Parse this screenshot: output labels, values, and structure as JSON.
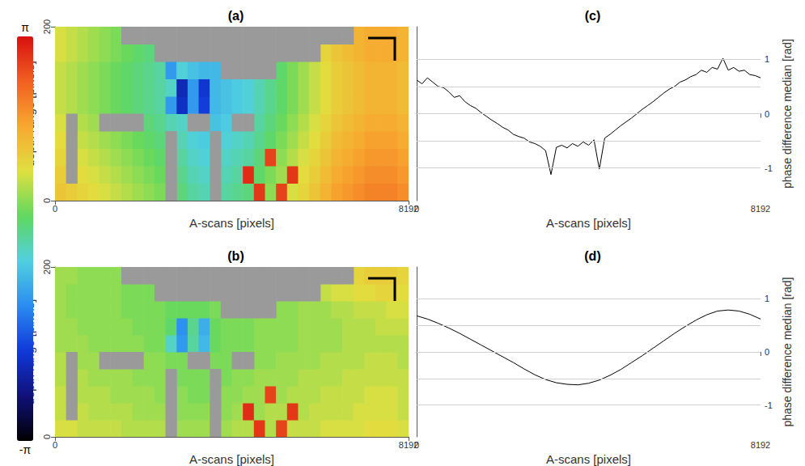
{
  "chart_data": [
    {
      "type": "heatmap",
      "title": "(a)",
      "x_label": "A-scans [pixels]",
      "y_label": "depth range [pixels]",
      "xlim": [
        0,
        8192
      ],
      "xticks": [
        0,
        8192
      ],
      "ylim": [
        0,
        200
      ],
      "yticks": [
        0,
        200
      ],
      "colorbar": {
        "range": [
          -3.14159,
          3.14159
        ],
        "ticks": [
          {
            "value": -3.14159,
            "label": "-π"
          },
          {
            "value": 3.14159,
            "label": "π"
          }
        ]
      },
      "x_bins": [
        0,
        256,
        512,
        768,
        1024,
        1280,
        1536,
        1792,
        2048,
        2304,
        2560,
        2816,
        3072,
        3328,
        3584,
        3840,
        4096,
        4352,
        4608,
        4864,
        5120,
        5376,
        5632,
        5888,
        6144,
        6400,
        6656,
        6912,
        7168,
        7424,
        7680,
        7936,
        8192
      ],
      "y_bins": [
        0,
        20,
        40,
        60,
        80,
        100,
        120,
        140,
        160,
        180,
        200
      ],
      "cells": [
        [
          1.4,
          1.3,
          1.2,
          1.1,
          1.0,
          0.9,
          0.8,
          0.7,
          0.6,
          0.5,
          null,
          0.2,
          0.0,
          -0.1,
          null,
          0.0,
          0.1,
          0.2,
          2.8,
          0.6,
          2.7,
          1.0,
          1.2,
          1.4,
          1.6,
          1.8,
          1.9,
          2.0,
          2.1,
          2.1,
          2.1,
          2.0
        ],
        [
          1.3,
          null,
          1.1,
          1.0,
          0.9,
          0.8,
          0.7,
          0.6,
          0.5,
          0.4,
          null,
          0.1,
          -0.1,
          -0.2,
          null,
          -0.1,
          0.0,
          2.9,
          0.3,
          0.5,
          0.7,
          2.8,
          1.1,
          1.3,
          1.5,
          1.7,
          1.8,
          1.9,
          2.0,
          2.0,
          2.0,
          1.9
        ],
        [
          1.2,
          null,
          1.0,
          0.9,
          0.8,
          0.7,
          0.6,
          0.5,
          0.4,
          0.3,
          null,
          0.0,
          -0.2,
          -0.3,
          null,
          -0.2,
          -0.1,
          0.0,
          0.2,
          2.7,
          0.6,
          0.8,
          1.0,
          1.2,
          1.4,
          1.6,
          1.7,
          1.8,
          1.9,
          1.9,
          1.9,
          1.8
        ],
        [
          1.1,
          null,
          0.9,
          0.8,
          0.7,
          0.6,
          0.5,
          0.4,
          0.3,
          0.2,
          null,
          -0.1,
          -0.3,
          -0.4,
          null,
          -0.3,
          -0.2,
          -0.1,
          0.1,
          0.3,
          0.5,
          0.7,
          0.9,
          1.1,
          1.3,
          1.5,
          1.6,
          1.7,
          1.8,
          1.8,
          1.8,
          1.7
        ],
        [
          1.0,
          null,
          0.8,
          0.7,
          null,
          null,
          null,
          null,
          0.2,
          0.1,
          -0.1,
          -0.2,
          null,
          null,
          -0.5,
          -0.4,
          null,
          null,
          0.0,
          0.2,
          0.4,
          0.6,
          0.8,
          1.0,
          1.2,
          1.4,
          1.5,
          1.6,
          1.7,
          1.7,
          1.7,
          1.6
        ],
        [
          0.9,
          0.8,
          0.7,
          0.6,
          0.5,
          0.4,
          0.3,
          0.2,
          0.1,
          0.0,
          -0.9,
          -1.9,
          -0.9,
          -1.7,
          -0.6,
          -0.5,
          -0.4,
          -0.3,
          -0.1,
          0.1,
          0.3,
          0.5,
          0.7,
          0.9,
          1.1,
          1.3,
          1.4,
          1.5,
          1.6,
          1.6,
          1.6,
          1.5
        ],
        [
          0.9,
          0.8,
          0.7,
          0.6,
          0.5,
          0.4,
          0.3,
          0.2,
          0.1,
          0.0,
          -0.2,
          -2.0,
          -0.9,
          -1.8,
          -0.6,
          -0.5,
          -0.4,
          -0.3,
          -0.1,
          0.1,
          0.3,
          0.5,
          0.7,
          0.9,
          1.1,
          1.3,
          1.4,
          1.5,
          1.6,
          1.6,
          1.6,
          1.5
        ],
        [
          0.9,
          0.8,
          0.7,
          0.6,
          0.5,
          0.4,
          0.3,
          0.2,
          0.1,
          0.0,
          -0.9,
          -0.3,
          -0.5,
          -0.6,
          -0.6,
          null,
          null,
          null,
          null,
          null,
          0.3,
          0.5,
          0.7,
          0.9,
          1.1,
          1.3,
          1.4,
          1.5,
          1.6,
          1.6,
          1.6,
          1.5
        ],
        [
          1.0,
          0.9,
          0.8,
          0.7,
          0.6,
          0.5,
          0.4,
          0.3,
          0.2,
          null,
          null,
          null,
          null,
          null,
          null,
          null,
          null,
          null,
          null,
          null,
          null,
          null,
          null,
          null,
          1.2,
          1.4,
          1.5,
          1.6,
          1.7,
          1.7,
          1.7,
          1.6
        ],
        [
          1.0,
          0.9,
          0.8,
          0.7,
          0.6,
          0.5,
          null,
          null,
          null,
          null,
          null,
          null,
          null,
          null,
          null,
          null,
          null,
          null,
          null,
          null,
          null,
          null,
          null,
          null,
          null,
          null,
          null,
          1.6,
          1.7,
          1.7,
          1.7,
          1.6
        ]
      ]
    },
    {
      "type": "heatmap",
      "title": "(b)",
      "x_label": "A-scans [pixels]",
      "y_label": "depth range [pixels]",
      "xlim": [
        0,
        8192
      ],
      "xticks": [
        0,
        8192
      ],
      "ylim": [
        0,
        200
      ],
      "yticks": [
        0,
        200
      ],
      "x_bins": [
        0,
        256,
        512,
        768,
        1024,
        1280,
        1536,
        1792,
        2048,
        2304,
        2560,
        2816,
        3072,
        3328,
        3584,
        3840,
        4096,
        4352,
        4608,
        4864,
        5120,
        5376,
        5632,
        5888,
        6144,
        6400,
        6656,
        6912,
        7168,
        7424,
        7680,
        7936,
        8192
      ],
      "y_bins": [
        0,
        20,
        40,
        60,
        80,
        100,
        120,
        140,
        160,
        180,
        200
      ],
      "cells": [
        [
          1.0,
          1.0,
          0.9,
          0.9,
          0.9,
          0.9,
          0.8,
          0.8,
          0.8,
          0.8,
          null,
          0.7,
          0.7,
          0.7,
          null,
          0.7,
          0.8,
          0.8,
          2.8,
          0.8,
          2.7,
          0.9,
          0.9,
          0.9,
          1.0,
          1.0,
          1.0,
          1.0,
          1.1,
          1.1,
          1.1,
          1.0
        ],
        [
          0.9,
          null,
          0.9,
          0.8,
          0.8,
          0.8,
          0.8,
          0.7,
          0.7,
          0.7,
          null,
          0.6,
          0.6,
          0.6,
          null,
          0.6,
          0.7,
          2.9,
          0.7,
          0.8,
          0.8,
          2.8,
          0.8,
          0.9,
          0.9,
          0.9,
          0.9,
          1.0,
          1.0,
          1.0,
          1.0,
          0.9
        ],
        [
          0.9,
          null,
          0.8,
          0.8,
          0.8,
          0.7,
          0.7,
          0.7,
          0.7,
          0.6,
          null,
          0.6,
          0.5,
          0.5,
          null,
          0.6,
          0.6,
          0.7,
          0.7,
          2.7,
          0.7,
          0.8,
          0.8,
          0.8,
          0.9,
          0.9,
          0.9,
          0.9,
          1.0,
          1.0,
          1.0,
          0.9
        ],
        [
          0.8,
          null,
          0.8,
          0.7,
          0.7,
          0.7,
          0.7,
          0.6,
          0.6,
          0.6,
          null,
          0.5,
          0.5,
          0.5,
          null,
          0.5,
          0.6,
          0.6,
          0.7,
          0.7,
          0.7,
          0.7,
          0.8,
          0.8,
          0.8,
          0.8,
          0.9,
          0.9,
          0.9,
          0.9,
          0.9,
          0.9
        ],
        [
          0.8,
          null,
          0.7,
          0.7,
          null,
          null,
          null,
          null,
          0.6,
          0.6,
          0.5,
          0.5,
          null,
          null,
          0.5,
          0.5,
          null,
          null,
          0.6,
          0.6,
          0.7,
          0.7,
          0.7,
          0.7,
          0.8,
          0.8,
          0.8,
          0.8,
          0.9,
          0.9,
          0.9,
          0.8
        ],
        [
          0.7,
          0.7,
          0.7,
          0.6,
          0.6,
          0.6,
          0.6,
          0.6,
          0.5,
          0.5,
          -0.2,
          -0.9,
          0.0,
          -0.6,
          0.4,
          0.5,
          0.5,
          0.5,
          0.6,
          0.6,
          0.6,
          0.6,
          0.7,
          0.7,
          0.7,
          0.7,
          0.8,
          0.8,
          0.8,
          0.8,
          0.8,
          0.8
        ],
        [
          0.7,
          0.7,
          0.6,
          0.6,
          0.6,
          0.6,
          0.6,
          0.5,
          0.5,
          0.5,
          0.3,
          -1.0,
          0.1,
          -0.7,
          0.4,
          0.5,
          0.5,
          0.5,
          0.6,
          0.6,
          0.6,
          0.6,
          0.7,
          0.7,
          0.7,
          0.7,
          0.8,
          0.8,
          0.8,
          0.9,
          0.9,
          0.9
        ],
        [
          0.7,
          0.6,
          0.6,
          0.6,
          0.6,
          0.6,
          0.5,
          0.5,
          0.5,
          0.5,
          0.4,
          0.4,
          0.4,
          0.4,
          0.5,
          null,
          null,
          null,
          null,
          null,
          0.6,
          0.6,
          0.7,
          0.7,
          0.7,
          0.8,
          0.8,
          0.9,
          0.9,
          0.9,
          1.0,
          1.0
        ],
        [
          0.7,
          0.6,
          0.6,
          0.6,
          0.6,
          0.6,
          0.5,
          0.5,
          0.5,
          null,
          null,
          null,
          null,
          null,
          null,
          null,
          null,
          null,
          null,
          null,
          null,
          null,
          null,
          null,
          0.9,
          1.0,
          1.0,
          1.1,
          1.1,
          1.2,
          1.2,
          1.1
        ],
        [
          0.7,
          0.7,
          0.6,
          0.6,
          0.6,
          0.6,
          null,
          null,
          null,
          null,
          null,
          null,
          null,
          null,
          null,
          null,
          null,
          null,
          null,
          null,
          null,
          null,
          null,
          null,
          null,
          null,
          null,
          1.2,
          1.3,
          1.3,
          1.3,
          1.2
        ]
      ]
    },
    {
      "type": "line",
      "title": "(c)",
      "x_label": "A-scans [pixels]",
      "y_label": "phase difference median [rad]",
      "xlim": [
        0,
        8192
      ],
      "xticks": [
        0,
        8192
      ],
      "ylim": [
        -1.6,
        1.6
      ],
      "yticks": [
        -1,
        0,
        1
      ],
      "grid": true,
      "color": "#000000",
      "x": [
        0,
        128,
        256,
        384,
        512,
        640,
        768,
        896,
        1024,
        1152,
        1280,
        1408,
        1536,
        1664,
        1792,
        1920,
        2048,
        2176,
        2304,
        2432,
        2560,
        2688,
        2816,
        2944,
        3072,
        3200,
        3328,
        3456,
        3584,
        3712,
        3840,
        3968,
        4096,
        4224,
        4352,
        4480,
        4608,
        4736,
        4864,
        4992,
        5120,
        5248,
        5376,
        5504,
        5632,
        5760,
        5888,
        6016,
        6144,
        6272,
        6400,
        6528,
        6656,
        6784,
        6912,
        7040,
        7168,
        7296,
        7424,
        7552,
        7680,
        7808,
        7936,
        8064,
        8192
      ],
      "values": [
        0.62,
        0.55,
        0.66,
        0.58,
        0.5,
        0.48,
        0.4,
        0.3,
        0.33,
        0.22,
        0.15,
        0.1,
        0.02,
        -0.05,
        -0.12,
        -0.18,
        -0.25,
        -0.3,
        -0.38,
        -0.42,
        -0.45,
        -0.52,
        -0.55,
        -0.6,
        -0.68,
        -1.12,
        -0.62,
        -0.58,
        -0.63,
        -0.55,
        -0.6,
        -0.52,
        -0.58,
        -0.48,
        -1.02,
        -0.45,
        -0.38,
        -0.3,
        -0.22,
        -0.15,
        -0.08,
        0.0,
        0.08,
        0.15,
        0.22,
        0.3,
        0.38,
        0.45,
        0.5,
        0.58,
        0.62,
        0.68,
        0.72,
        0.8,
        0.76,
        0.85,
        0.82,
        1.02,
        0.8,
        0.85,
        0.78,
        0.8,
        0.72,
        0.7,
        0.66
      ]
    },
    {
      "type": "line",
      "title": "(d)",
      "x_label": "A-scans [pixels]",
      "y_label": "phase difference median [rad]",
      "xlim": [
        0,
        8192
      ],
      "xticks": [
        0,
        8192
      ],
      "ylim": [
        -1.6,
        1.6
      ],
      "yticks": [
        -1,
        0,
        1
      ],
      "grid": true,
      "color": "#000000",
      "x": [
        0,
        256,
        512,
        768,
        1024,
        1280,
        1536,
        1792,
        2048,
        2304,
        2560,
        2816,
        3072,
        3328,
        3584,
        3840,
        4096,
        4352,
        4608,
        4864,
        5120,
        5376,
        5632,
        5888,
        6144,
        6400,
        6656,
        6912,
        7168,
        7424,
        7680,
        7936,
        8192
      ],
      "values": [
        0.68,
        0.62,
        0.54,
        0.45,
        0.35,
        0.24,
        0.13,
        0.02,
        -0.09,
        -0.2,
        -0.32,
        -0.43,
        -0.52,
        -0.58,
        -0.61,
        -0.62,
        -0.59,
        -0.53,
        -0.44,
        -0.33,
        -0.2,
        -0.07,
        0.07,
        0.21,
        0.35,
        0.48,
        0.6,
        0.7,
        0.77,
        0.79,
        0.77,
        0.71,
        0.62
      ]
    }
  ]
}
